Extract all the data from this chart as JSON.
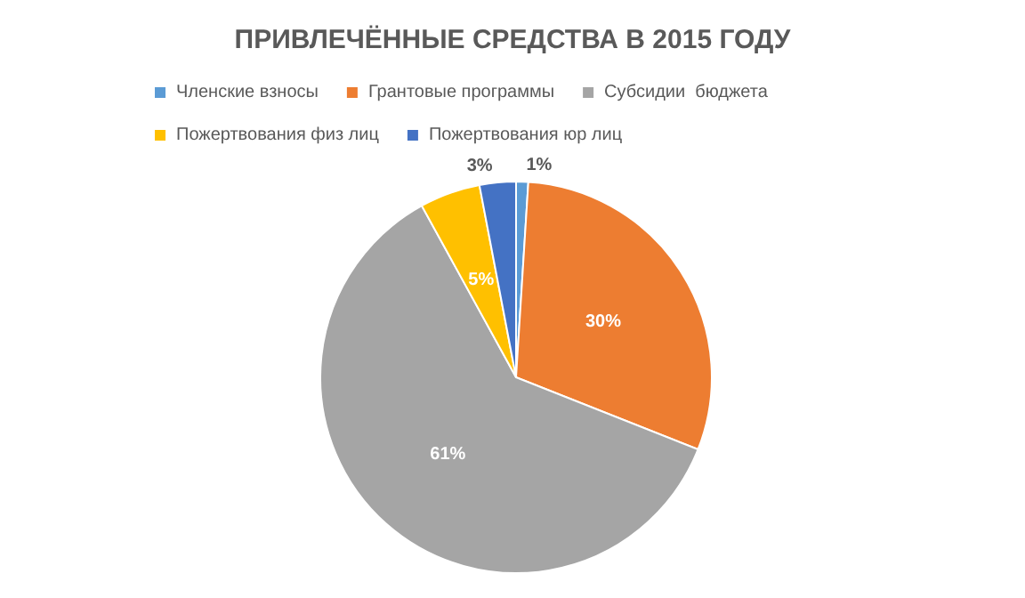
{
  "chart_data": {
    "type": "pie",
    "title": "ПРИВЛЕЧЁННЫЕ СРЕДСТВА В 2015 ГОДУ",
    "categories": [
      "Членские взносы",
      "Грантовые программы",
      "Субсидии  бюджета",
      "Пожертвования физ лиц",
      "Пожертвования юр лиц"
    ],
    "values": [
      1,
      30,
      61,
      5,
      3
    ],
    "colors": [
      "#5b9bd5",
      "#ed7d31",
      "#a5a5a5",
      "#ffc000",
      "#4472c4"
    ],
    "value_labels": [
      "1%",
      "30%",
      "61%",
      "5%",
      "3%"
    ],
    "legend": "top"
  }
}
